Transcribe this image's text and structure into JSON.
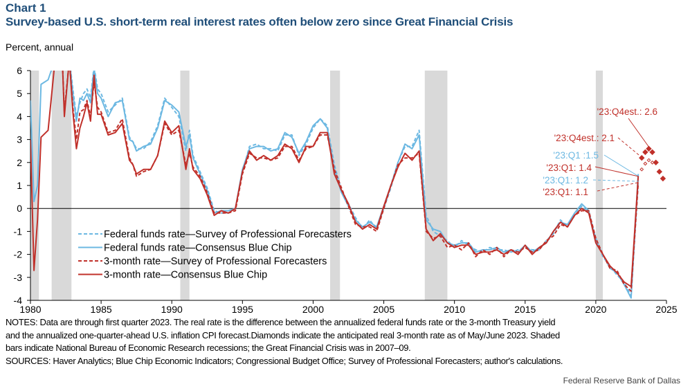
{
  "header": {
    "title": "Chart 1",
    "subtitle": "Survey-based U.S. short-term real interest rates often below zero since Great Financial Crisis"
  },
  "chart_data": {
    "type": "line",
    "ylabel": "Percent, annual",
    "xlim": [
      1980,
      2025
    ],
    "ylim": [
      -4,
      6
    ],
    "xticks": [
      1980,
      1985,
      1990,
      1995,
      2000,
      2005,
      2010,
      2015,
      2020,
      2025
    ],
    "yticks": [
      -4,
      -3,
      -2,
      -1,
      0,
      1,
      2,
      3,
      4,
      5,
      6
    ],
    "legend_position": "lower-left",
    "colors": {
      "fed_funds": "#6cb8e2",
      "three_month": "#c0302a",
      "recession": "#d9d9d9"
    },
    "recessions": [
      [
        1980.0,
        1980.6
      ],
      [
        1981.5,
        1982.9
      ],
      [
        1990.6,
        1991.25
      ],
      [
        2001.2,
        2001.9
      ],
      [
        2007.9,
        2009.5
      ],
      [
        2020.0,
        2020.5
      ]
    ],
    "x": [
      1980.0,
      1980.25,
      1980.5,
      1980.75,
      1981.25,
      1981.75,
      1982.25,
      1982.4,
      1982.75,
      1983.0,
      1983.25,
      1983.5,
      1983.75,
      1984.0,
      1984.25,
      1984.5,
      1984.75,
      1985.0,
      1985.5,
      1986.0,
      1986.5,
      1987.0,
      1987.25,
      1987.5,
      1988.0,
      1988.5,
      1989.0,
      1989.5,
      1990.0,
      1990.5,
      1991.0,
      1991.25,
      1991.5,
      1992.0,
      1992.5,
      1993.0,
      1993.5,
      1994.0,
      1994.5,
      1995.0,
      1995.5,
      1996.0,
      1996.5,
      1997.0,
      1997.5,
      1998.0,
      1998.5,
      1999.0,
      1999.5,
      2000.0,
      2000.5,
      2001.0,
      2001.5,
      2002.0,
      2002.5,
      2003.0,
      2003.5,
      2004.0,
      2004.5,
      2005.0,
      2005.5,
      2006.0,
      2006.5,
      2007.0,
      2007.5,
      2008.0,
      2008.5,
      2009.0,
      2009.5,
      2010.0,
      2010.5,
      2011.0,
      2011.5,
      2012.0,
      2012.5,
      2013.0,
      2013.5,
      2014.0,
      2014.5,
      2015.0,
      2015.5,
      2016.0,
      2016.5,
      2017.0,
      2017.5,
      2018.0,
      2018.5,
      2019.0,
      2019.5,
      2020.0,
      2020.5,
      2021.0,
      2021.5,
      2022.0,
      2022.5,
      2023.0
    ],
    "series": [
      {
        "name": "Federal funds rate—Survey of Professional Forecasters",
        "color": "#6cb8e2",
        "dash": true,
        "values": [
          null,
          null,
          null,
          null,
          null,
          null,
          6.5,
          6.5,
          6.5,
          5.2,
          4.0,
          4.6,
          5.0,
          5.2,
          4.8,
          6.2,
          5.2,
          5.0,
          4.2,
          4.5,
          4.8,
          3.1,
          2.9,
          2.6,
          2.6,
          2.9,
          3.6,
          4.8,
          4.4,
          4.0,
          2.5,
          3.4,
          2.3,
          1.6,
          0.9,
          -0.1,
          -0.2,
          -0.2,
          0.0,
          1.6,
          2.7,
          2.8,
          2.6,
          2.6,
          2.5,
          3.2,
          3.2,
          2.3,
          2.8,
          3.5,
          3.9,
          3.6,
          1.9,
          0.8,
          0.2,
          -0.4,
          -0.9,
          -0.5,
          -0.9,
          0.0,
          0.9,
          2.0,
          2.7,
          2.7,
          3.4,
          -0.3,
          -1.0,
          -1.2,
          -1.4,
          -1.7,
          -1.4,
          -1.6,
          -1.8,
          -1.9,
          -1.7,
          -1.8,
          -1.8,
          -1.9,
          -1.8,
          -1.7,
          -1.8,
          -1.8,
          -1.4,
          -1.1,
          -0.5,
          -0.8,
          -0.3,
          0.1,
          -0.2,
          -1.3,
          -2.1,
          -2.5,
          -2.9,
          -3.2,
          -3.8,
          1.2
        ]
      },
      {
        "name": "Federal funds rate—Consensus Blue Chip",
        "color": "#6cb8e2",
        "dash": false,
        "values": [
          4.7,
          0.3,
          1.0,
          5.4,
          5.6,
          6.5,
          6.5,
          6.5,
          6.5,
          5.0,
          3.8,
          4.8,
          4.7,
          5.0,
          4.6,
          6.1,
          5.0,
          4.8,
          4.0,
          4.6,
          4.7,
          3.0,
          2.9,
          2.5,
          2.7,
          2.8,
          3.5,
          4.7,
          4.5,
          4.2,
          2.7,
          3.2,
          2.2,
          1.5,
          0.8,
          -0.2,
          -0.1,
          -0.1,
          0.0,
          1.7,
          2.6,
          2.7,
          2.7,
          2.5,
          2.6,
          3.3,
          3.1,
          2.4,
          2.9,
          3.6,
          3.9,
          3.5,
          1.7,
          0.7,
          0.1,
          -0.5,
          -0.8,
          -0.6,
          -0.8,
          0.1,
          1.0,
          2.0,
          2.8,
          2.6,
          3.2,
          -0.5,
          -0.9,
          -1.0,
          -1.5,
          -1.6,
          -1.5,
          -1.5,
          -1.9,
          -1.8,
          -1.8,
          -1.7,
          -1.9,
          -1.8,
          -1.9,
          -1.6,
          -1.9,
          -1.7,
          -1.5,
          -1.0,
          -0.6,
          -0.7,
          -0.2,
          0.2,
          -0.1,
          -1.4,
          -2.0,
          -2.6,
          -2.8,
          -3.3,
          -3.9,
          1.5
        ]
      },
      {
        "name": "3-month rate—Survey of Professional Forecasters",
        "color": "#c0302a",
        "dash": true,
        "values": [
          null,
          null,
          null,
          null,
          null,
          null,
          6.5,
          4.2,
          6.5,
          4.4,
          3.0,
          4.2,
          4.3,
          4.7,
          4.0,
          5.5,
          4.4,
          4.2,
          3.3,
          3.4,
          3.9,
          2.2,
          1.9,
          1.4,
          1.6,
          1.7,
          2.3,
          3.7,
          3.2,
          3.4,
          1.9,
          2.4,
          1.8,
          1.4,
          0.7,
          -0.2,
          -0.2,
          -0.2,
          -0.1,
          1.5,
          2.4,
          2.2,
          2.2,
          2.1,
          2.2,
          2.7,
          2.7,
          2.1,
          2.6,
          2.7,
          3.2,
          3.2,
          1.7,
          0.9,
          0.1,
          -0.7,
          -0.8,
          -0.8,
          -1.0,
          0.0,
          1.0,
          1.9,
          2.2,
          2.2,
          2.4,
          -1.0,
          -1.3,
          -1.2,
          -1.7,
          -1.6,
          -1.8,
          -1.5,
          -2.1,
          -1.8,
          -2.0,
          -1.7,
          -2.1,
          -1.8,
          -1.9,
          -1.7,
          -1.9,
          -1.8,
          -1.4,
          -1.2,
          -0.7,
          -0.8,
          -0.3,
          -0.1,
          -0.1,
          -1.3,
          -2.0,
          -2.6,
          -2.7,
          -3.3,
          -3.6,
          1.1
        ]
      },
      {
        "name": "3-month rate—Consensus Blue Chip",
        "color": "#c0302a",
        "dash": false,
        "values": [
          3.0,
          -2.7,
          -0.5,
          3.1,
          3.4,
          6.5,
          6.5,
          4.0,
          6.5,
          4.2,
          2.6,
          3.5,
          4.0,
          4.6,
          3.8,
          5.8,
          4.1,
          4.1,
          3.2,
          3.3,
          3.7,
          2.1,
          1.9,
          1.5,
          1.7,
          1.7,
          2.3,
          3.8,
          3.3,
          3.6,
          1.7,
          2.6,
          1.7,
          1.3,
          0.6,
          -0.3,
          -0.1,
          -0.2,
          0.0,
          1.6,
          2.5,
          2.1,
          2.3,
          2.1,
          2.3,
          2.8,
          2.6,
          2.0,
          2.7,
          2.7,
          3.3,
          3.3,
          1.5,
          0.8,
          0.2,
          -0.6,
          -0.9,
          -0.7,
          -0.9,
          0.1,
          1.0,
          1.8,
          2.4,
          2.1,
          2.5,
          -0.9,
          -1.4,
          -1.1,
          -1.5,
          -1.7,
          -1.6,
          -1.6,
          -2.0,
          -1.9,
          -1.9,
          -1.8,
          -2.0,
          -1.8,
          -2.0,
          -1.6,
          -2.0,
          -1.7,
          -1.5,
          -1.0,
          -0.6,
          -0.8,
          -0.3,
          0.0,
          -0.2,
          -1.5,
          -2.0,
          -2.5,
          -2.8,
          -3.2,
          -3.4,
          1.4
        ]
      }
    ],
    "diamonds": {
      "three_month_consensus": {
        "x": [
          2023.25,
          2023.5,
          2023.75,
          2024.0,
          2024.25,
          2024.5,
          2024.75
        ],
        "values": [
          2.2,
          2.45,
          2.6,
          2.45,
          2.0,
          1.6,
          1.3
        ]
      },
      "three_month_spf": {
        "x": [
          2023.25,
          2023.5,
          2023.75,
          2024.0
        ],
        "values": [
          1.7,
          1.95,
          2.1,
          2.0
        ]
      }
    },
    "annotations": [
      {
        "text": "'23:Q4est.: 2.6",
        "color": "#c0302a"
      },
      {
        "text": "'23:Q4est.: 2.1",
        "color": "#c0302a"
      },
      {
        "text": "'23:Q1 :1.5",
        "color": "#6cb8e2"
      },
      {
        "text": "'23:Q1: 1.4",
        "color": "#c0302a"
      },
      {
        "text": "'23:Q1: 1.2",
        "color": "#6cb8e2"
      },
      {
        "text": "'23:Q1: 1.1",
        "color": "#c0302a"
      }
    ]
  },
  "notes": {
    "lines": [
      "NOTES: Data are through first quarter 2023. The real rate is the difference between the annualized federal funds rate or the 3-month Treasury yield",
      "and the annualized one-quarter-ahead U.S. inflation CPI forecast.Diamonds indicate the anticipated real 3-month rate as of May/June 2023. Shaded",
      "bars indicate National Bureau of Economic Research recessions; the Great Financial Crisis was in 2007–09."
    ],
    "sources": "SOURCES: Haver Analytics; Blue Chip Economic Indicators; Congressional Budget Office; Survey of Professional Forecasters;  author's calculations."
  },
  "credit": "Federal  Reserve  Bank of Dallas"
}
